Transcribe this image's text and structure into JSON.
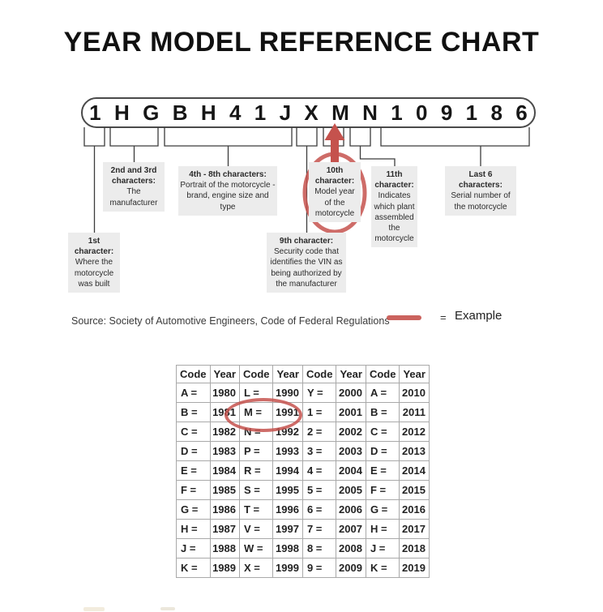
{
  "title": "YEAR MODEL REFERENCE CHART",
  "vin": {
    "characters": [
      "1",
      "H",
      "G",
      "B",
      "H",
      "4",
      "1",
      "J",
      "X",
      "M",
      "N",
      "1",
      "0",
      "9",
      "1",
      "8",
      "6"
    ]
  },
  "callouts": [
    {
      "heading": "1st character:",
      "body": "Where the motorcycle was built"
    },
    {
      "heading": "2nd and 3rd characters:",
      "body": "The manufacturer"
    },
    {
      "heading": "4th - 8th characters:",
      "body": "Portrait of the motorcycle - brand, engine size and type"
    },
    {
      "heading": "9th character:",
      "body": "Security code that identifies the VIN as being authorized by the manufacturer"
    },
    {
      "heading": "10th character:",
      "body": "Model year of the motorcycle"
    },
    {
      "heading": "11th character:",
      "body": "Indicates which plant assembled the motorcycle"
    },
    {
      "heading": "Last 6 characters:",
      "body": "Serial number of the motorcycle"
    }
  ],
  "source": {
    "text": "Source:  Society of Automotive Engineers, Code of Federal Regulations"
  },
  "legend": {
    "equals_sign": "=",
    "label": "Example"
  },
  "colors": {
    "accent_red": "#c5524d",
    "callout_bg": "#ececec",
    "line": "#3c3c3c"
  },
  "chart_data": {
    "type": "table",
    "columns": [
      "Code",
      "Year",
      "Code",
      "Year",
      "Code",
      "Year",
      "Code",
      "Year"
    ],
    "rows": [
      [
        "A =",
        "1980",
        "L =",
        "1990",
        "Y =",
        "2000",
        "A =",
        "2010"
      ],
      [
        "B =",
        "1981",
        "M =",
        "1991",
        "1 =",
        "2001",
        "B =",
        "2011"
      ],
      [
        "C =",
        "1982",
        "N =",
        "1992",
        "2 =",
        "2002",
        "C =",
        "2012"
      ],
      [
        "D =",
        "1983",
        "P =",
        "1993",
        "3 =",
        "2003",
        "D =",
        "2013"
      ],
      [
        "E =",
        "1984",
        "R =",
        "1994",
        "4 =",
        "2004",
        "E =",
        "2014"
      ],
      [
        "F =",
        "1985",
        "S =",
        "1995",
        "5 =",
        "2005",
        "F =",
        "2015"
      ],
      [
        "G =",
        "1986",
        "T =",
        "1996",
        "6 =",
        "2006",
        "G =",
        "2016"
      ],
      [
        "H =",
        "1987",
        "V =",
        "1997",
        "7 =",
        "2007",
        "H =",
        "2017"
      ],
      [
        "J =",
        "1988",
        "W =",
        "1998",
        "8 =",
        "2008",
        "J =",
        "2018"
      ],
      [
        "K =",
        "1989",
        "X =",
        "1999",
        "9 =",
        "2009",
        "K =",
        "2019"
      ]
    ],
    "highlighted_entry": "M = 1991"
  }
}
